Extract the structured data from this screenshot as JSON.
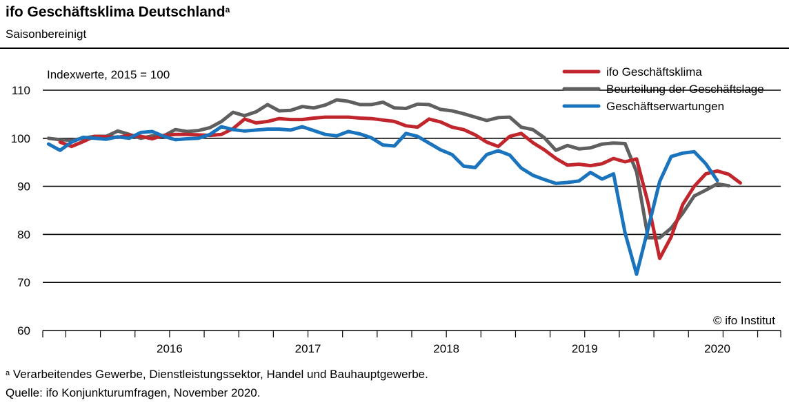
{
  "chart_data": {
    "type": "line",
    "title": "ifo Geschäftsklima Deutschland",
    "title_superscript": "a",
    "subtitle": "Saisonbereinigt",
    "ylabel": "Indexwerte, 2015 = 100",
    "ylim": [
      60,
      110
    ],
    "yticks": [
      60,
      70,
      80,
      90,
      100,
      110
    ],
    "year_labels": [
      "2016",
      "2017",
      "2018",
      "2019",
      "2020"
    ],
    "x_start": "2015-08",
    "x_end": "2020-11",
    "grid": true,
    "legend_position": "top-right",
    "copyright": "© ifo Institut",
    "series": [
      {
        "name": "ifo Geschäftsklima",
        "color": "#c0262c",
        "values": [
          99.2,
          98.3,
          99.3,
          100.4,
          100.3,
          100.2,
          100.6,
          100.4,
          99.9,
          100.6,
          100.8,
          100.8,
          100.7,
          100.6,
          100.8,
          102.0,
          104.0,
          103.2,
          103.5,
          104.1,
          103.9,
          103.9,
          104.2,
          104.4,
          104.4,
          104.4,
          104.2,
          104.1,
          103.8,
          103.5,
          102.6,
          102.3,
          104.0,
          103.4,
          102.3,
          101.8,
          100.7,
          99.2,
          98.3,
          100.4,
          101.0,
          99.1,
          97.6,
          95.8,
          94.4,
          94.6,
          94.3,
          94.7,
          95.8,
          95.1,
          95.7,
          86.5,
          75.0,
          79.5,
          86.2,
          90.0,
          92.6,
          93.2,
          92.5,
          90.7
        ],
        "start": "2015-09"
      },
      {
        "name": "Beurteilung der Geschäftslage",
        "color": "#5f5f5f",
        "values": [
          100.0,
          99.7,
          99.6,
          100.0,
          100.4,
          100.4,
          101.5,
          100.8,
          100.0,
          100.5,
          100.5,
          101.8,
          101.4,
          101.6,
          102.2,
          103.5,
          105.4,
          104.7,
          105.5,
          107.0,
          105.7,
          105.8,
          106.6,
          106.3,
          106.9,
          108.0,
          107.7,
          107.0,
          107.0,
          107.5,
          106.3,
          106.2,
          107.1,
          107.0,
          106.0,
          105.7,
          105.1,
          104.4,
          103.7,
          104.3,
          104.4,
          102.3,
          101.8,
          100.1,
          97.5,
          98.5,
          97.8,
          98.0,
          98.8,
          99.0,
          98.9,
          93.0,
          79.3,
          79.3,
          81.3,
          84.4,
          88.0,
          89.2,
          90.5,
          90.1
        ],
        "start": "2015-08"
      },
      {
        "name": "Geschäftserwartungen",
        "color": "#1a73bd",
        "values": [
          98.8,
          97.5,
          99.2,
          100.2,
          100.0,
          99.8,
          100.3,
          100.0,
          101.2,
          101.4,
          100.4,
          99.7,
          99.9,
          100.0,
          100.8,
          102.4,
          101.8,
          101.5,
          101.7,
          101.9,
          101.9,
          101.7,
          102.4,
          101.6,
          100.8,
          100.5,
          101.4,
          100.9,
          100.1,
          98.6,
          98.4,
          101.0,
          100.4,
          99.0,
          97.6,
          96.6,
          94.2,
          93.9,
          96.6,
          97.4,
          96.5,
          93.8,
          92.3,
          91.4,
          90.6,
          90.8,
          91.1,
          92.9,
          91.5,
          92.6,
          80.3,
          71.7,
          81.2,
          91.0,
          96.2,
          96.9,
          97.2,
          94.7,
          91.2
        ],
        "start": "2015-08"
      }
    ]
  },
  "footnote": {
    "marker": "a",
    "text": " Verarbeitendes Gewerbe, Dienstleistungssektor, Handel und Bauhauptgewerbe."
  },
  "source": "Quelle: ifo Konjunkturumfragen, November 2020."
}
